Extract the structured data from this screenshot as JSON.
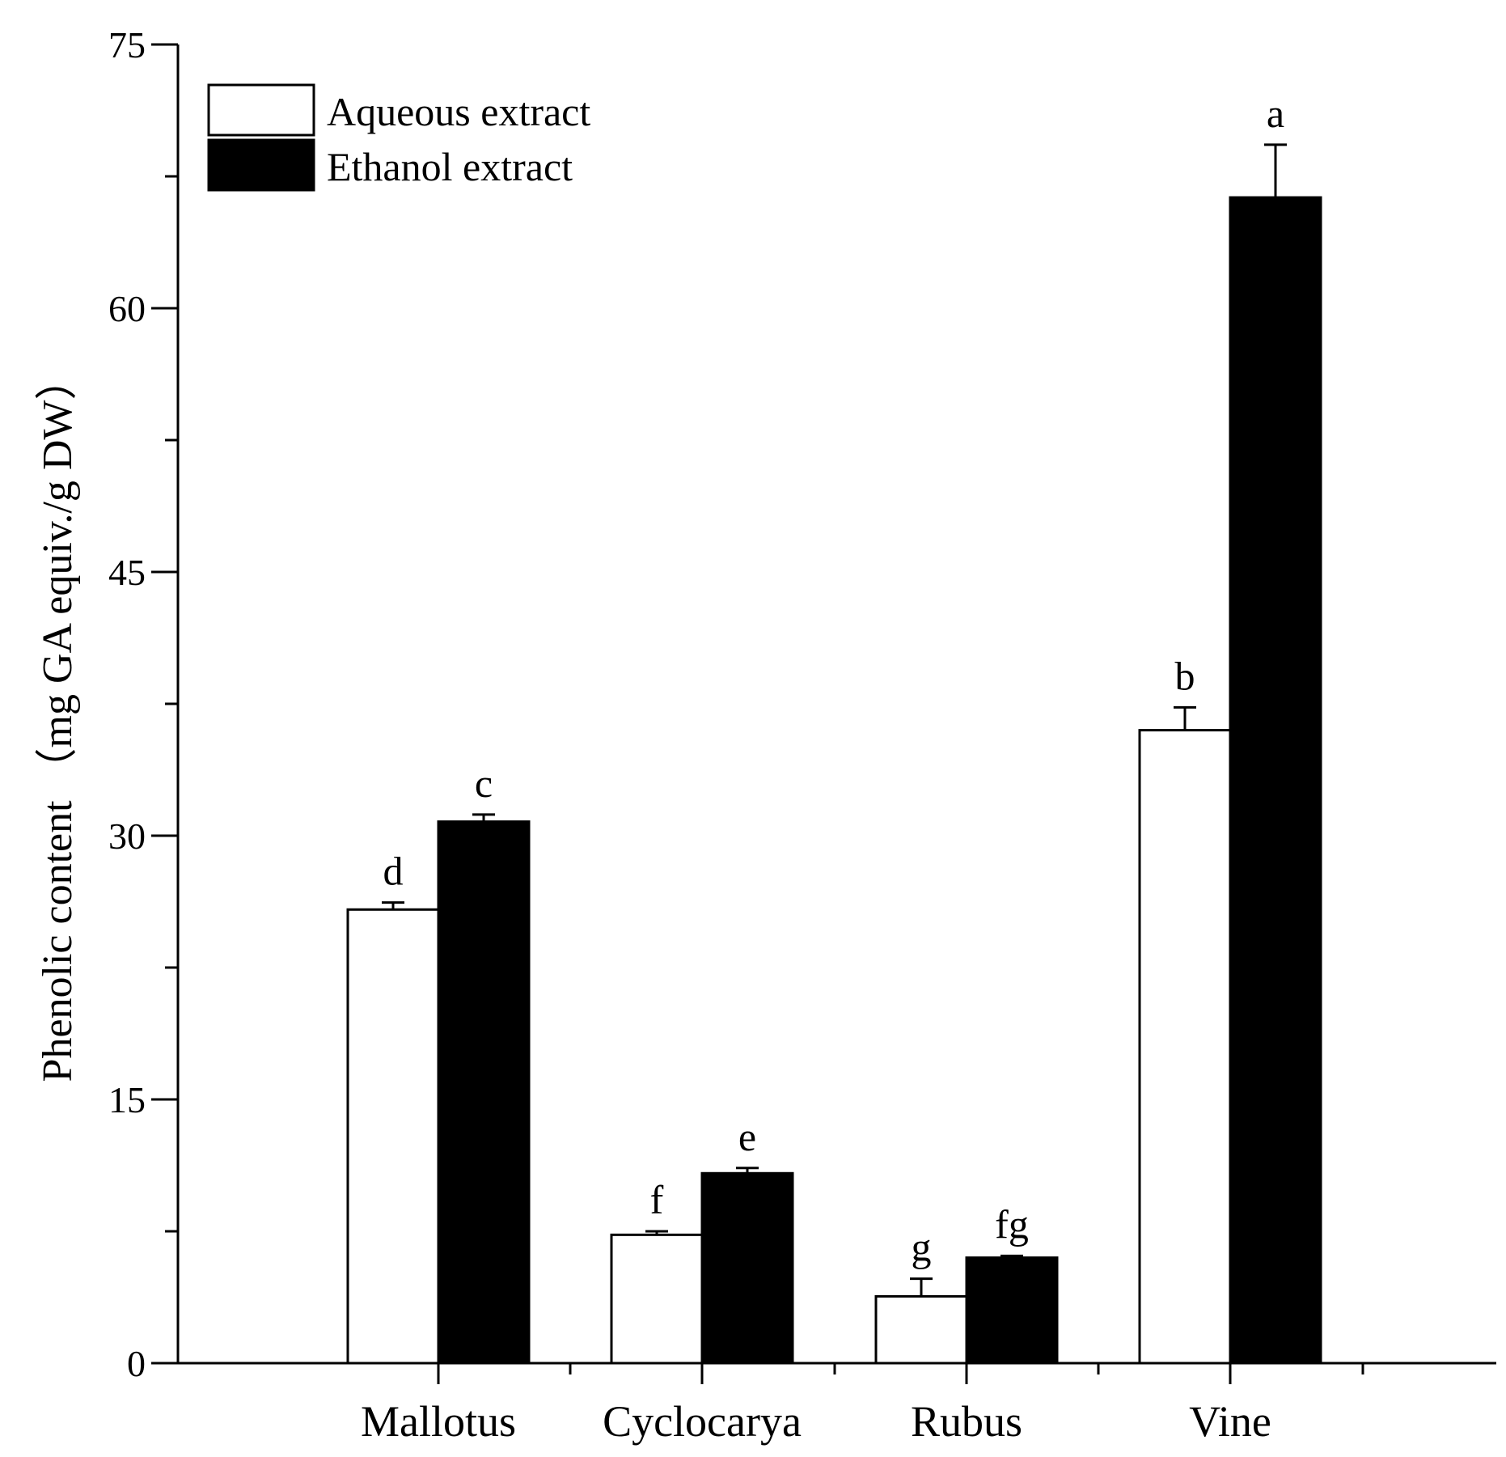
{
  "chart_data": {
    "type": "bar",
    "title": "",
    "xlabel": "",
    "ylabel": "Phenolic content （mg GA equiv./g DW）",
    "ylim": [
      0,
      75
    ],
    "yticks": [
      0,
      15,
      30,
      45,
      60,
      75
    ],
    "yminor_ticks": [
      7.5,
      22.5,
      37.5,
      52.5,
      67.5
    ],
    "categories": [
      "Mallotus",
      "Cyclocarya",
      "Rubus",
      "Vine"
    ],
    "legend_position": "top-left",
    "series": [
      {
        "name": "Aqueous extract",
        "fill": "#ffffff",
        "values": [
          25.8,
          7.3,
          3.8,
          36.0
        ],
        "errors": [
          0.4,
          0.2,
          1.0,
          1.3
        ],
        "letters": [
          "d",
          "f",
          "g",
          "b"
        ]
      },
      {
        "name": "Ethanol extract",
        "fill": "#000000",
        "values": [
          30.8,
          10.8,
          6.0,
          66.3
        ],
        "errors": [
          0.4,
          0.3,
          0.1,
          3.0
        ],
        "letters": [
          "c",
          "e",
          "fg",
          "a"
        ]
      }
    ],
    "colors": {
      "axis": "#000000",
      "background": "#ffffff"
    }
  }
}
